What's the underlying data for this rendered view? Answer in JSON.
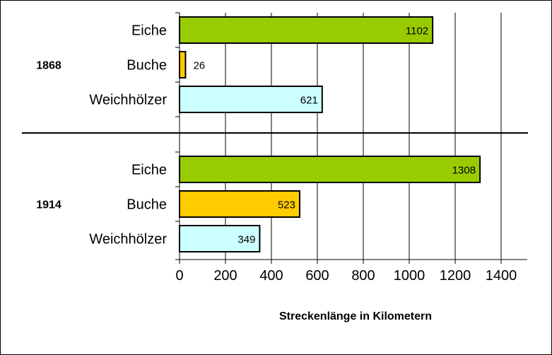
{
  "chart_data": {
    "type": "bar",
    "orientation": "horizontal",
    "xlabel": "Streckenlänge in Kilometern",
    "xlim": [
      0,
      1400
    ],
    "xticks": [
      0,
      200,
      400,
      600,
      800,
      1000,
      1200,
      1400
    ],
    "grid": true,
    "legend": "none",
    "groups": [
      {
        "label": "1868",
        "bars": [
          {
            "category": "Eiche",
            "value": 1102,
            "color": "#99cc00"
          },
          {
            "category": "Buche",
            "value": 26,
            "color": "#ffcc00"
          },
          {
            "category": "Weichhölzer",
            "value": 621,
            "color": "#ccffff"
          }
        ]
      },
      {
        "label": "1914",
        "bars": [
          {
            "category": "Eiche",
            "value": 1308,
            "color": "#99cc00"
          },
          {
            "category": "Buche",
            "value": 523,
            "color": "#ffcc00"
          },
          {
            "category": "Weichhölzer",
            "value": 349,
            "color": "#ccffff"
          }
        ]
      }
    ]
  }
}
